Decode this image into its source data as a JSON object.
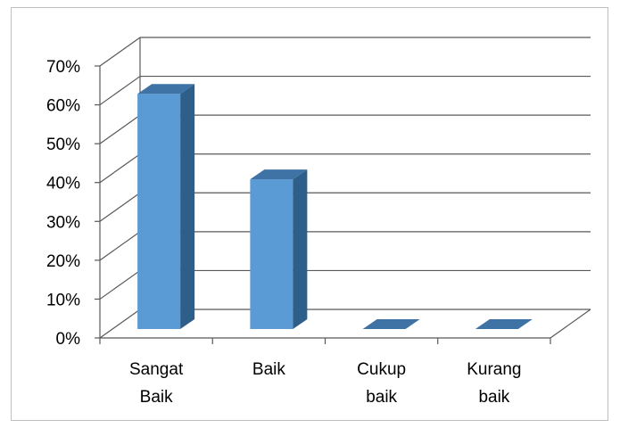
{
  "chart_data": {
    "type": "bar",
    "style": "3d-column",
    "categories": [
      [
        "Sangat",
        "Baik"
      ],
      [
        "Baik"
      ],
      [
        "Cukup",
        "baik"
      ],
      [
        "Kurang",
        "baik"
      ]
    ],
    "values": [
      61,
      39,
      0,
      0
    ],
    "ylim": [
      0,
      70
    ],
    "yticks": [
      0,
      10,
      20,
      30,
      40,
      50,
      60,
      70
    ],
    "ytick_labels": [
      "0%",
      "10%",
      "20%",
      "30%",
      "40%",
      "50%",
      "60%",
      "70%"
    ],
    "grid": true,
    "legend": false,
    "title": "",
    "xlabel": "",
    "ylabel": "",
    "colors": {
      "bar_front": "#5b9bd5",
      "bar_side": "#2e5f8a",
      "bar_top": "#3f73a6",
      "grid": "#595959"
    }
  }
}
